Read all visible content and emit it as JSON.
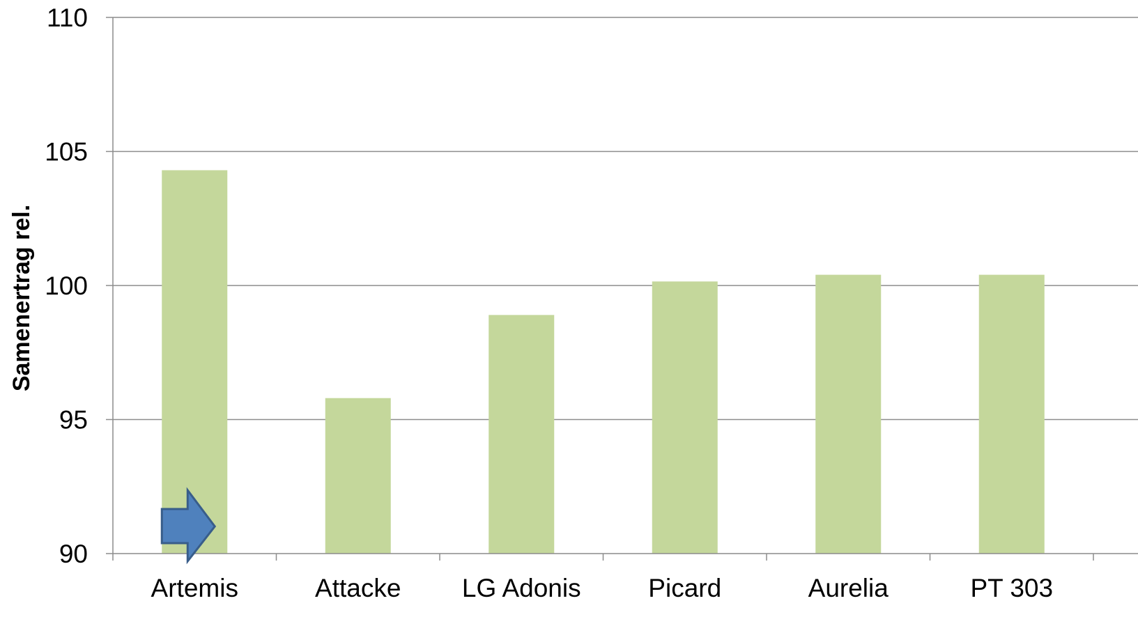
{
  "chart_data": {
    "type": "bar",
    "categories": [
      "Artemis",
      "Attacke",
      "LG Adonis",
      "Picard",
      "Aurelia",
      "PT 303"
    ],
    "values": [
      104.3,
      95.8,
      98.9,
      100.15,
      100.4,
      100.4
    ],
    "title": "",
    "xlabel": "",
    "ylabel": "Samenertrag rel.",
    "ylim": [
      90,
      110
    ],
    "yticks": [
      90,
      95,
      100,
      105,
      110
    ],
    "grid": true,
    "legend": "none",
    "annotation": {
      "type": "arrow",
      "icon": "arrow-right-icon",
      "category": "Artemis"
    },
    "colors": {
      "bar": "#c4d79b",
      "grid": "#8c8c8c",
      "arrow_fill": "#4f81bd",
      "arrow_stroke": "#385d8a"
    }
  }
}
